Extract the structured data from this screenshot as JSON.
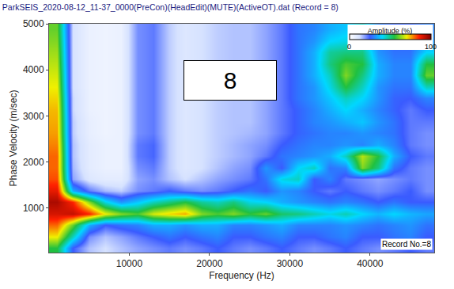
{
  "chart_data": {
    "type": "heatmap",
    "title": "ParkSEIS_2020-08-12_11-37_0000(PreCon)(HeadEdit)(MUTE)(ActiveOT).dat (Record = 8)",
    "x_label": "Frequency (Hz)",
    "y_label": "Phase Velocity (m/sec)",
    "annotations": [
      "8",
      "Record No.=8"
    ],
    "xlim": [
      0,
      48000
    ],
    "ylim": [
      30,
      5000
    ],
    "xticks": [
      10000,
      20000,
      30000,
      40000
    ],
    "yticks": [
      1000,
      2000,
      3000,
      4000,
      5000
    ],
    "grid": true,
    "colorbar": {
      "title": "Amplitude (%)",
      "range": [
        0,
        100
      ],
      "ticks": [
        0,
        100
      ]
    },
    "x": [
      1000,
      3000,
      5000,
      7000,
      9000,
      11000,
      13000,
      15000,
      17000,
      19000,
      21000,
      23000,
      25000,
      27000,
      29000,
      31000,
      33000,
      35000,
      37000,
      39000,
      41000,
      43000,
      45000,
      47000
    ],
    "y": [
      125,
      375,
      625,
      875,
      1125,
      1375,
      1625,
      1875,
      2125,
      2375,
      2625,
      2875,
      3125,
      3375,
      3625,
      3875,
      4125,
      4375,
      4625,
      4875
    ],
    "cells": [
      [
        55,
        25,
        15,
        12,
        15,
        18,
        20,
        22,
        20,
        22,
        25,
        22,
        20,
        22,
        25,
        22,
        20,
        22,
        25,
        22,
        20,
        22,
        25,
        22
      ],
      [
        70,
        45,
        20,
        15,
        18,
        22,
        25,
        28,
        25,
        28,
        30,
        25,
        25,
        28,
        30,
        25,
        25,
        28,
        30,
        25,
        25,
        28,
        30,
        25
      ],
      [
        80,
        60,
        35,
        25,
        28,
        30,
        35,
        35,
        32,
        35,
        35,
        30,
        30,
        32,
        35,
        30,
        30,
        30,
        32,
        30,
        28,
        30,
        32,
        28
      ],
      [
        90,
        92,
        85,
        70,
        62,
        58,
        68,
        72,
        75,
        62,
        58,
        62,
        56,
        60,
        52,
        50,
        46,
        42,
        46,
        40,
        36,
        40,
        36,
        34
      ],
      [
        95,
        85,
        62,
        42,
        32,
        38,
        45,
        50,
        55,
        48,
        45,
        50,
        42,
        40,
        35,
        32,
        30,
        28,
        30,
        28,
        25,
        28,
        25,
        25
      ],
      [
        88,
        35,
        22,
        16,
        14,
        20,
        22,
        25,
        22,
        20,
        22,
        25,
        28,
        25,
        32,
        30,
        25,
        22,
        25,
        22,
        20,
        22,
        25,
        20
      ],
      [
        82,
        18,
        10,
        8,
        8,
        18,
        20,
        15,
        12,
        15,
        18,
        20,
        22,
        28,
        42,
        45,
        25,
        30,
        22,
        20,
        18,
        20,
        22,
        20
      ],
      [
        80,
        16,
        8,
        6,
        6,
        20,
        22,
        14,
        10,
        12,
        15,
        18,
        20,
        32,
        25,
        40,
        45,
        28,
        30,
        62,
        50,
        28,
        22,
        20
      ],
      [
        80,
        15,
        8,
        6,
        6,
        22,
        24,
        14,
        10,
        12,
        14,
        16,
        18,
        22,
        28,
        30,
        32,
        35,
        45,
        66,
        55,
        35,
        25,
        22
      ],
      [
        78,
        15,
        8,
        6,
        6,
        22,
        24,
        14,
        10,
        12,
        14,
        16,
        18,
        20,
        25,
        28,
        30,
        30,
        32,
        30,
        35,
        30,
        22,
        20
      ],
      [
        76,
        14,
        7,
        5,
        6,
        20,
        22,
        14,
        10,
        12,
        14,
        15,
        16,
        18,
        22,
        26,
        28,
        30,
        30,
        32,
        30,
        28,
        22,
        20
      ],
      [
        75,
        14,
        7,
        5,
        6,
        20,
        22,
        14,
        10,
        12,
        14,
        15,
        15,
        18,
        22,
        26,
        30,
        32,
        35,
        38,
        32,
        28,
        22,
        22
      ],
      [
        74,
        13,
        6,
        5,
        6,
        20,
        22,
        14,
        10,
        12,
        14,
        15,
        15,
        18,
        22,
        26,
        30,
        35,
        40,
        35,
        30,
        26,
        22,
        25
      ],
      [
        72,
        13,
        6,
        5,
        6,
        20,
        22,
        14,
        10,
        12,
        14,
        15,
        15,
        18,
        22,
        28,
        32,
        38,
        45,
        40,
        32,
        26,
        25,
        30
      ],
      [
        70,
        12,
        6,
        5,
        6,
        20,
        22,
        14,
        10,
        12,
        14,
        15,
        15,
        18,
        22,
        28,
        32,
        42,
        55,
        45,
        32,
        28,
        28,
        45
      ],
      [
        68,
        12,
        6,
        5,
        6,
        20,
        22,
        14,
        10,
        12,
        14,
        15,
        15,
        18,
        22,
        28,
        35,
        45,
        62,
        50,
        35,
        30,
        30,
        60
      ],
      [
        66,
        12,
        6,
        5,
        6,
        20,
        22,
        14,
        10,
        12,
        14,
        15,
        15,
        18,
        22,
        28,
        35,
        50,
        58,
        55,
        35,
        30,
        30,
        55
      ],
      [
        64,
        12,
        6,
        5,
        6,
        20,
        22,
        14,
        10,
        12,
        14,
        15,
        15,
        18,
        22,
        28,
        35,
        48,
        50,
        50,
        32,
        28,
        28,
        40
      ],
      [
        62,
        12,
        6,
        5,
        6,
        20,
        22,
        14,
        10,
        12,
        14,
        15,
        15,
        18,
        22,
        28,
        32,
        40,
        42,
        42,
        30,
        26,
        26,
        32
      ],
      [
        60,
        12,
        6,
        5,
        6,
        20,
        22,
        14,
        10,
        12,
        14,
        15,
        15,
        18,
        22,
        28,
        30,
        35,
        38,
        45,
        30,
        26,
        26,
        30
      ]
    ]
  }
}
